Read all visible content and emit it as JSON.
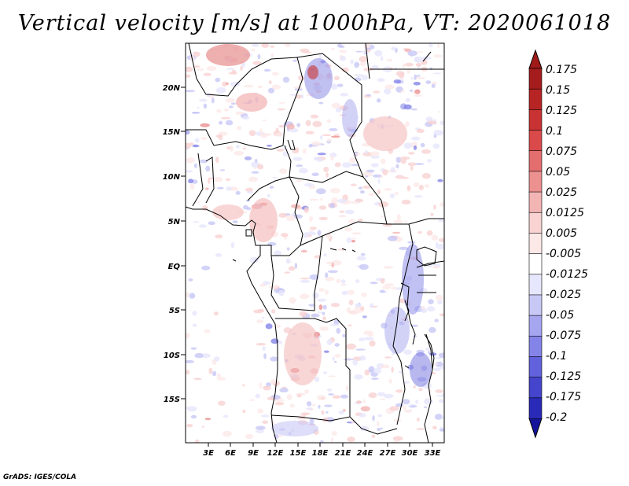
{
  "title": "Vertical velocity [m/s] at 1000hPa, VT: 2020061018",
  "credit": "GrADS: IGES/COLA",
  "map": {
    "variable": "Vertical velocity",
    "units": "m/s",
    "level": "1000hPa",
    "valid_time": "2020061018",
    "lat_range": [
      -19.5,
      24.5
    ],
    "lon_range": [
      0,
      34.5
    ],
    "lat_ticks": [
      {
        "value": 20,
        "label": "20N"
      },
      {
        "value": 15,
        "label": "15N"
      },
      {
        "value": 10,
        "label": "10N"
      },
      {
        "value": 5,
        "label": "5N"
      },
      {
        "value": 0,
        "label": "EQ"
      },
      {
        "value": -5,
        "label": "5S"
      },
      {
        "value": -10,
        "label": "10S"
      },
      {
        "value": -15,
        "label": "15S"
      }
    ],
    "lon_ticks": [
      {
        "value": 3,
        "label": "3E"
      },
      {
        "value": 6,
        "label": "6E"
      },
      {
        "value": 9,
        "label": "9E"
      },
      {
        "value": 12,
        "label": "12E"
      },
      {
        "value": 15,
        "label": "15E"
      },
      {
        "value": 18,
        "label": "18E"
      },
      {
        "value": 21,
        "label": "21E"
      },
      {
        "value": 24,
        "label": "24E"
      },
      {
        "value": 27,
        "label": "27E"
      },
      {
        "value": 30,
        "label": "30E"
      },
      {
        "value": 33,
        "label": "33E"
      }
    ]
  },
  "colorbar": {
    "levels": [
      {
        "label": "0.175",
        "color": "#a41c1c"
      },
      {
        "label": "0.15",
        "color": "#b72424"
      },
      {
        "label": "0.125",
        "color": "#c93232"
      },
      {
        "label": "0.1",
        "color": "#db4a4a"
      },
      {
        "label": "0.075",
        "color": "#e46e6e"
      },
      {
        "label": "0.05",
        "color": "#ec9090"
      },
      {
        "label": "0.025",
        "color": "#f3b4b4"
      },
      {
        "label": "0.0125",
        "color": "#f9d2d2"
      },
      {
        "label": "0.005",
        "color": "#fde8e8"
      },
      {
        "label": "-0.005",
        "color": "#ffffff"
      },
      {
        "label": "-0.0125",
        "color": "#e6e6fc"
      },
      {
        "label": "-0.025",
        "color": "#c8c8f6"
      },
      {
        "label": "-0.05",
        "color": "#a6a6f0"
      },
      {
        "label": "-0.075",
        "color": "#8484e8"
      },
      {
        "label": "-0.1",
        "color": "#6262dc"
      },
      {
        "label": "-0.125",
        "color": "#4444cc"
      },
      {
        "label": "-0.175",
        "color": "#2a2ab8"
      },
      {
        "label": "-0.2",
        "color": "#1818a0"
      }
    ],
    "top_arrow_color": "#a01a1a",
    "bottom_arrow_color": "#14149a"
  }
}
